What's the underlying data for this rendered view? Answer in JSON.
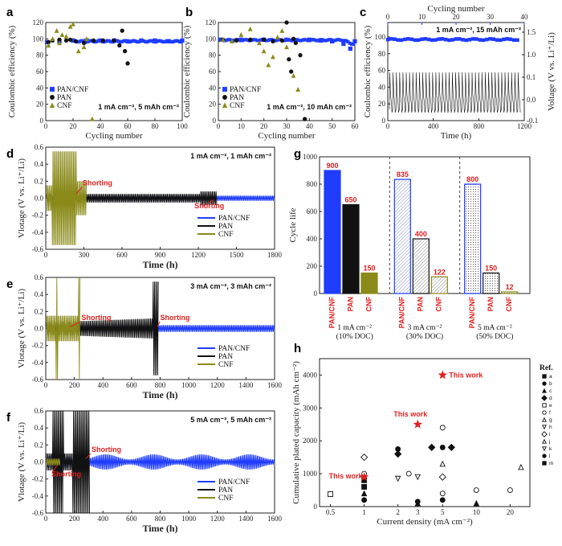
{
  "colors": {
    "pan_cnf": "#1f3cff",
    "pan": "#111111",
    "cnf": "#8a8a1a",
    "red": "#e02020"
  },
  "panels": {
    "a": {
      "label": "a",
      "condition": "1 mA cm⁻², 5 mAh cm⁻²"
    },
    "b": {
      "label": "b",
      "condition": "1 mA cm⁻², 10 mAh cm⁻²"
    },
    "c": {
      "label": "c",
      "condition": "1 mA cm⁻², 15 mAh cm⁻²"
    },
    "d": {
      "label": "d",
      "condition": "1 mA cm⁻², 1 mAh cm⁻²",
      "annotation": "Shorting",
      "annotation2": "Shorting"
    },
    "e": {
      "label": "e",
      "condition": "3 mA cm⁻², 3 mAh cm⁻²",
      "annotation": "Shorting",
      "annotation2": "Shorting"
    },
    "f": {
      "label": "f",
      "condition": "5 mA cm⁻², 5 mAh cm⁻²",
      "annotation": "Shorting",
      "annotation2": "Shorting"
    },
    "g": {
      "label": "g"
    },
    "h": {
      "label": "h",
      "annotation": "This work"
    }
  },
  "legend": {
    "pan_cnf": "PAN/CNF",
    "pan": "PAN",
    "cnf": "CNF"
  },
  "axes": {
    "ce_ylabel": "Coulombic efficiency (%)",
    "cycle_xlabel": "Cycling number",
    "volt_ylabel": "Vlotage (V vs. Li⁺/Li)",
    "volt_ylabel_c": "Voltage (V vs. Li⁺/Li)",
    "time_xlabel": "Time (h)",
    "cycle_life_ylabel": "Cycle life",
    "cum_ylabel": "Cumulative plated capacity (mAh cm⁻²)",
    "cd_xlabel": "Current density (mA cm⁻²)",
    "ref_title": "Ref."
  },
  "chart_data": [
    {
      "panel": "a",
      "type": "scatter",
      "xlim": [
        0,
        100
      ],
      "ylim": [
        0,
        120
      ],
      "xticks": [
        "0",
        "20",
        "40",
        "60",
        "80",
        "100"
      ],
      "yticks": [
        "0",
        "20",
        "40",
        "60",
        "80",
        "100",
        "120"
      ],
      "series": [
        {
          "name": "PAN/CNF",
          "x": [
            1,
            10,
            20,
            30,
            40,
            50,
            60,
            70,
            80,
            90,
            100
          ],
          "y": [
            96,
            97,
            98,
            98,
            98,
            98,
            97,
            98,
            98,
            97,
            98
          ]
        },
        {
          "name": "PAN",
          "x": [
            2,
            5,
            10,
            15,
            18,
            22,
            28,
            35,
            42,
            50,
            54,
            56,
            58,
            60
          ],
          "y": [
            96,
            98,
            99,
            98,
            99,
            97,
            95,
            98,
            98,
            98,
            92,
            110,
            85,
            70
          ]
        },
        {
          "name": "CNF",
          "x": [
            2,
            5,
            8,
            10,
            12,
            15,
            18,
            20,
            24,
            28,
            30,
            34
          ],
          "y": [
            92,
            100,
            110,
            95,
            105,
            103,
            115,
            118,
            85,
            90,
            100,
            2
          ]
        }
      ]
    },
    {
      "panel": "b",
      "type": "scatter",
      "xlim": [
        0,
        60
      ],
      "ylim": [
        0,
        120
      ],
      "xticks": [
        "0",
        "10",
        "20",
        "30",
        "40",
        "50",
        "60"
      ],
      "yticks": [
        "0",
        "20",
        "40",
        "60",
        "80",
        "100",
        "120"
      ],
      "series": [
        {
          "name": "PAN/CNF",
          "x": [
            1,
            10,
            20,
            30,
            40,
            45,
            50,
            55,
            58,
            60
          ],
          "y": [
            99,
            99,
            99,
            99,
            99,
            98,
            97,
            94,
            88,
            97
          ]
        },
        {
          "name": "PAN",
          "x": [
            2,
            8,
            14,
            20,
            24,
            28,
            30,
            31,
            32,
            33,
            34,
            36,
            38
          ],
          "y": [
            99,
            98,
            99,
            99,
            97,
            98,
            120,
            75,
            60,
            100,
            95,
            80,
            2
          ]
        },
        {
          "name": "CNF",
          "x": [
            2,
            6,
            10,
            14,
            18,
            20,
            22,
            24,
            26,
            28,
            30,
            33,
            35
          ],
          "y": [
            99,
            97,
            105,
            112,
            95,
            85,
            68,
            78,
            102,
            110,
            90,
            55,
            38
          ]
        }
      ]
    },
    {
      "panel": "c",
      "type": "line",
      "xlim": [
        0,
        1200
      ],
      "ylim": [
        -0.1,
        1.5
      ],
      "x2lim": [
        0,
        40
      ],
      "y1lim": [
        0,
        100
      ],
      "xticks": [
        "0",
        "400",
        "800",
        "1200"
      ],
      "x2ticks": [
        "0",
        "10",
        "20",
        "30",
        "40"
      ],
      "y1ticks": [
        "0",
        "20",
        "40",
        "60",
        "80",
        "100"
      ],
      "y2ticks": [
        "-0.1",
        "0.0",
        "0.1",
        "1.0",
        "1.5"
      ],
      "ce_series": {
        "name": "PAN/CNF",
        "x": [
          0,
          5,
          10,
          15,
          20,
          25,
          30,
          35,
          40
        ],
        "y": [
          96,
          97,
          98,
          98,
          97,
          98,
          98,
          98,
          97
        ]
      }
    },
    {
      "panel": "d",
      "type": "line",
      "xlim": [
        0,
        1800
      ],
      "ylim": [
        -0.6,
        0.6
      ],
      "xticks": [
        "0",
        "300",
        "600",
        "900",
        "1200",
        "1500",
        "1800"
      ],
      "yticks": [
        "-0.6",
        "-0.4",
        "-0.2",
        "0.0",
        "0.2",
        "0.4",
        "0.6"
      ],
      "series": [
        {
          "name": "PAN/CNF",
          "x_end": 1800,
          "amplitude": 0.03
        },
        {
          "name": "PAN",
          "x_end": 1350,
          "amplitude": 0.05
        },
        {
          "name": "CNF",
          "x_end": 320,
          "amplitude": 0.55
        }
      ]
    },
    {
      "panel": "e",
      "type": "line",
      "xlim": [
        0,
        1600
      ],
      "ylim": [
        -0.6,
        0.6
      ],
      "xticks": [
        "0",
        "200",
        "400",
        "600",
        "800",
        "1000",
        "1200",
        "1400",
        "1600"
      ],
      "yticks": [
        "-0.6",
        "-0.4",
        "-0.2",
        "0.0",
        "0.2",
        "0.4",
        "0.6"
      ],
      "series": [
        {
          "name": "PAN/CNF",
          "x_end": 1600,
          "amplitude": 0.04
        },
        {
          "name": "PAN",
          "x_end": 790,
          "amplitude": 0.12
        },
        {
          "name": "CNF",
          "x_end": 240,
          "amplitude": 0.15
        }
      ]
    },
    {
      "panel": "f",
      "type": "line",
      "xlim": [
        0,
        1600
      ],
      "ylim": [
        -0.6,
        0.6
      ],
      "xticks": [
        "0",
        "200",
        "400",
        "600",
        "800",
        "1000",
        "1200",
        "1400",
        "1600"
      ],
      "yticks": [
        "-0.6",
        "-0.4",
        "-0.2",
        "0.0",
        "0.2",
        "0.4",
        "0.6"
      ],
      "series": [
        {
          "name": "PAN/CNF",
          "x_end": 1600,
          "amplitude": 0.06
        },
        {
          "name": "PAN",
          "x_end": 310,
          "amplitude": 0.6
        },
        {
          "name": "CNF",
          "x_end": 100,
          "amplitude": 0.04
        }
      ]
    },
    {
      "panel": "g",
      "type": "bar",
      "ylim": [
        0,
        1000
      ],
      "yticks": [
        "0",
        "200",
        "400",
        "600",
        "800",
        "1000"
      ],
      "groups": [
        {
          "line1": "1 mA cm⁻²",
          "line2": "(10% DOC)",
          "labels": [
            "PAN/CNF",
            "PAN",
            "CNF"
          ],
          "values": [
            900,
            650,
            150
          ]
        },
        {
          "line1": "3 mA cm⁻²",
          "line2": "(30% DOC)",
          "labels": [
            "PAN/CNF",
            "PAN",
            "CNF"
          ],
          "values": [
            835,
            400,
            122
          ]
        },
        {
          "line1": "5 mA cm⁻²",
          "line2": "(50% DOC)",
          "labels": [
            "PAN/CNF",
            "PAN",
            "CNF"
          ],
          "values": [
            800,
            150,
            12
          ]
        }
      ]
    },
    {
      "panel": "h",
      "type": "scatter",
      "xscale": "log",
      "xlim": [
        0.4,
        30
      ],
      "ylim": [
        0,
        4500
      ],
      "xticks": [
        "0.5",
        "1",
        "2",
        "3",
        "5",
        "10",
        "20"
      ],
      "yticks": [
        "0",
        "1000",
        "2000",
        "3000",
        "4000"
      ],
      "this_work": {
        "x": [
          1,
          3,
          5
        ],
        "y": [
          900,
          2500,
          4000
        ]
      },
      "refs": [
        "a",
        "b",
        "c",
        "d",
        "e",
        "f",
        "g",
        "h",
        "i",
        "j",
        "k",
        "l",
        "m"
      ],
      "ref_points": [
        {
          "x": 0.5,
          "y": 380,
          "m": "sq-open"
        },
        {
          "x": 1,
          "y": 800,
          "m": "sq"
        },
        {
          "x": 1,
          "y": 600,
          "m": "sq"
        },
        {
          "x": 1,
          "y": 1000,
          "m": "circ-open"
        },
        {
          "x": 1,
          "y": 1500,
          "m": "dia-open"
        },
        {
          "x": 1,
          "y": 200,
          "m": "circ"
        },
        {
          "x": 1,
          "y": 400,
          "m": "tri"
        },
        {
          "x": 2,
          "y": 1750,
          "m": "circ"
        },
        {
          "x": 2,
          "y": 1600,
          "m": "dia"
        },
        {
          "x": 2,
          "y": 850,
          "m": "tri-dn-open"
        },
        {
          "x": 2.5,
          "y": 1000,
          "m": "circ-open"
        },
        {
          "x": 3,
          "y": 900,
          "m": "tri-dn-open"
        },
        {
          "x": 3,
          "y": 150,
          "m": "circ"
        },
        {
          "x": 3,
          "y": 100,
          "m": "tri"
        },
        {
          "x": 4,
          "y": 1800,
          "m": "dia"
        },
        {
          "x": 5,
          "y": 2400,
          "m": "circ-open"
        },
        {
          "x": 5,
          "y": 1800,
          "m": "circ"
        },
        {
          "x": 5,
          "y": 1300,
          "m": "tri-open"
        },
        {
          "x": 5,
          "y": 900,
          "m": "dia-open"
        },
        {
          "x": 5,
          "y": 400,
          "m": "circ-open"
        },
        {
          "x": 5,
          "y": 200,
          "m": "circ"
        },
        {
          "x": 6,
          "y": 1800,
          "m": "dia"
        },
        {
          "x": 10,
          "y": 500,
          "m": "circ-open"
        },
        {
          "x": 10,
          "y": 100,
          "m": "tri"
        },
        {
          "x": 20,
          "y": 500,
          "m": "circ-open"
        },
        {
          "x": 25,
          "y": 1200,
          "m": "tri-open"
        }
      ]
    }
  ]
}
